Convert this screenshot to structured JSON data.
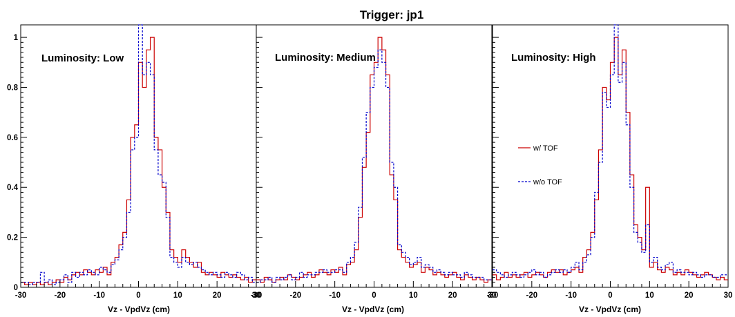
{
  "title": "Trigger: jp1",
  "colors": {
    "with_tof": "#cc0000",
    "without_tof": "#0000cc",
    "axis": "#000000"
  },
  "legend": {
    "with_tof": "w/ TOF",
    "without_tof": "w/o TOF"
  },
  "x_tick_labels": [
    "-30",
    "-20",
    "-10",
    "0",
    "10",
    "20",
    "30"
  ],
  "y_tick_labels": [
    "0",
    "0.2",
    "0.4",
    "0.6",
    "0.8",
    "1"
  ],
  "chart_data": [
    {
      "type": "line",
      "title": "Trigger: jp1",
      "annotation": "Luminosity: Low",
      "xlabel": "Vz - VpdVz (cm)",
      "ylabel": "",
      "xlim": [
        -30,
        30
      ],
      "ylim": [
        0,
        1.05
      ],
      "bin_width": 1,
      "grid": false,
      "x": [
        -30,
        -29,
        -28,
        -27,
        -26,
        -25,
        -24,
        -23,
        -22,
        -21,
        -20,
        -19,
        -18,
        -17,
        -16,
        -15,
        -14,
        -13,
        -12,
        -11,
        -10,
        -9,
        -8,
        -7,
        -6,
        -5,
        -4,
        -3,
        -2,
        -1,
        0,
        1,
        2,
        3,
        4,
        5,
        6,
        7,
        8,
        9,
        10,
        11,
        12,
        13,
        14,
        15,
        16,
        17,
        18,
        19,
        20,
        21,
        22,
        23,
        24,
        25,
        26,
        27,
        28,
        29
      ],
      "series": [
        {
          "name": "w/ TOF",
          "values": [
            0.02,
            0.01,
            0.02,
            0.01,
            0.02,
            0.01,
            0.02,
            0.01,
            0.02,
            0.03,
            0.02,
            0.04,
            0.03,
            0.05,
            0.06,
            0.05,
            0.07,
            0.06,
            0.05,
            0.07,
            0.06,
            0.08,
            0.05,
            0.1,
            0.12,
            0.17,
            0.22,
            0.35,
            0.6,
            0.65,
            0.9,
            0.8,
            0.95,
            1.0,
            0.6,
            0.55,
            0.4,
            0.3,
            0.15,
            0.12,
            0.1,
            0.15,
            0.12,
            0.1,
            0.08,
            0.1,
            0.06,
            0.05,
            0.06,
            0.05,
            0.04,
            0.06,
            0.05,
            0.04,
            0.05,
            0.04,
            0.03,
            0.04,
            0.02,
            0.03
          ]
        },
        {
          "name": "w/o TOF",
          "values": [
            0.02,
            0.02,
            0.01,
            0.02,
            0.02,
            0.06,
            0.02,
            0.03,
            0.01,
            0.02,
            0.03,
            0.05,
            0.02,
            0.06,
            0.04,
            0.06,
            0.05,
            0.07,
            0.06,
            0.05,
            0.08,
            0.07,
            0.06,
            0.09,
            0.11,
            0.15,
            0.2,
            0.3,
            0.55,
            0.6,
            1.05,
            0.85,
            0.9,
            0.85,
            0.55,
            0.45,
            0.42,
            0.28,
            0.12,
            0.1,
            0.08,
            0.12,
            0.1,
            0.09,
            0.1,
            0.08,
            0.07,
            0.06,
            0.05,
            0.06,
            0.05,
            0.04,
            0.06,
            0.05,
            0.04,
            0.06,
            0.05,
            0.03,
            0.04,
            0.02
          ]
        }
      ]
    },
    {
      "type": "line",
      "annotation": "Luminosity: Medium",
      "xlabel": "Vz - VpdVz (cm)",
      "ylabel": "",
      "xlim": [
        -30,
        30
      ],
      "ylim": [
        0,
        1.05
      ],
      "bin_width": 1,
      "grid": false,
      "x": [
        -30,
        -29,
        -28,
        -27,
        -26,
        -25,
        -24,
        -23,
        -22,
        -21,
        -20,
        -19,
        -18,
        -17,
        -16,
        -15,
        -14,
        -13,
        -12,
        -11,
        -10,
        -9,
        -8,
        -7,
        -6,
        -5,
        -4,
        -3,
        -2,
        -1,
        0,
        1,
        2,
        3,
        4,
        5,
        6,
        7,
        8,
        9,
        10,
        11,
        12,
        13,
        14,
        15,
        16,
        17,
        18,
        19,
        20,
        21,
        22,
        23,
        24,
        25,
        26,
        27,
        28,
        29
      ],
      "series": [
        {
          "name": "w/ TOF",
          "values": [
            0.03,
            0.02,
            0.04,
            0.03,
            0.02,
            0.03,
            0.04,
            0.03,
            0.05,
            0.04,
            0.03,
            0.04,
            0.05,
            0.06,
            0.04,
            0.05,
            0.07,
            0.06,
            0.05,
            0.07,
            0.06,
            0.08,
            0.05,
            0.09,
            0.1,
            0.15,
            0.28,
            0.48,
            0.62,
            0.85,
            0.9,
            1.0,
            0.95,
            0.85,
            0.45,
            0.35,
            0.15,
            0.12,
            0.1,
            0.08,
            0.09,
            0.1,
            0.06,
            0.08,
            0.07,
            0.05,
            0.06,
            0.05,
            0.04,
            0.05,
            0.06,
            0.04,
            0.03,
            0.05,
            0.04,
            0.03,
            0.04,
            0.03,
            0.02,
            0.03
          ]
        },
        {
          "name": "w/o TOF",
          "values": [
            0.02,
            0.03,
            0.03,
            0.04,
            0.02,
            0.04,
            0.03,
            0.04,
            0.05,
            0.03,
            0.04,
            0.06,
            0.04,
            0.05,
            0.05,
            0.06,
            0.06,
            0.07,
            0.06,
            0.06,
            0.07,
            0.07,
            0.06,
            0.1,
            0.12,
            0.18,
            0.32,
            0.52,
            0.7,
            0.8,
            0.88,
            0.95,
            0.9,
            0.8,
            0.5,
            0.4,
            0.17,
            0.14,
            0.12,
            0.09,
            0.1,
            0.12,
            0.08,
            0.09,
            0.08,
            0.06,
            0.07,
            0.06,
            0.05,
            0.06,
            0.05,
            0.05,
            0.04,
            0.06,
            0.05,
            0.04,
            0.04,
            0.04,
            0.03,
            0.03
          ]
        }
      ]
    },
    {
      "type": "line",
      "annotation": "Luminosity: High",
      "xlabel": "Vz - VpdVz (cm)",
      "ylabel": "",
      "xlim": [
        -30,
        30
      ],
      "ylim": [
        0,
        1.05
      ],
      "bin_width": 1,
      "grid": false,
      "legend": "center-left",
      "x": [
        -30,
        -29,
        -28,
        -27,
        -26,
        -25,
        -24,
        -23,
        -22,
        -21,
        -20,
        -19,
        -18,
        -17,
        -16,
        -15,
        -14,
        -13,
        -12,
        -11,
        -10,
        -9,
        -8,
        -7,
        -6,
        -5,
        -4,
        -3,
        -2,
        -1,
        0,
        1,
        2,
        3,
        4,
        5,
        6,
        7,
        8,
        9,
        10,
        11,
        12,
        13,
        14,
        15,
        16,
        17,
        18,
        19,
        20,
        21,
        22,
        23,
        24,
        25,
        26,
        27,
        28,
        29
      ],
      "series": [
        {
          "name": "w/ TOF",
          "values": [
            0.05,
            0.03,
            0.04,
            0.06,
            0.04,
            0.05,
            0.04,
            0.05,
            0.06,
            0.04,
            0.05,
            0.06,
            0.05,
            0.04,
            0.06,
            0.07,
            0.06,
            0.07,
            0.05,
            0.06,
            0.07,
            0.08,
            0.06,
            0.12,
            0.15,
            0.22,
            0.35,
            0.55,
            0.8,
            0.75,
            0.9,
            1.0,
            0.85,
            0.95,
            0.7,
            0.45,
            0.25,
            0.2,
            0.15,
            0.4,
            0.08,
            0.1,
            0.07,
            0.06,
            0.08,
            0.07,
            0.05,
            0.06,
            0.05,
            0.07,
            0.06,
            0.05,
            0.04,
            0.05,
            0.06,
            0.05,
            0.04,
            0.03,
            0.04,
            0.03
          ]
        },
        {
          "name": "w/o TOF",
          "values": [
            0.07,
            0.06,
            0.05,
            0.04,
            0.05,
            0.06,
            0.05,
            0.04,
            0.05,
            0.06,
            0.07,
            0.05,
            0.06,
            0.04,
            0.05,
            0.06,
            0.07,
            0.06,
            0.07,
            0.06,
            0.08,
            0.1,
            0.07,
            0.1,
            0.13,
            0.2,
            0.38,
            0.5,
            0.78,
            0.72,
            0.85,
            1.05,
            0.82,
            0.9,
            0.65,
            0.4,
            0.22,
            0.18,
            0.14,
            0.25,
            0.1,
            0.12,
            0.08,
            0.07,
            0.09,
            0.1,
            0.06,
            0.07,
            0.06,
            0.06,
            0.05,
            0.06,
            0.05,
            0.04,
            0.05,
            0.05,
            0.04,
            0.04,
            0.05,
            0.05
          ]
        }
      ]
    }
  ]
}
